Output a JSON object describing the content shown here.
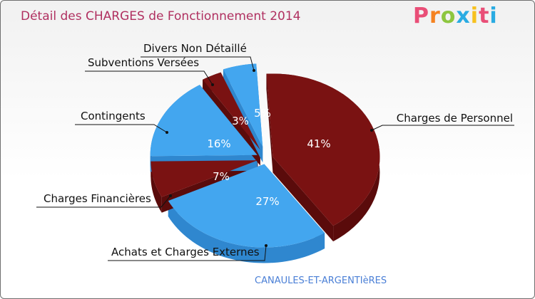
{
  "header": {
    "title": "Détail des CHARGES de Fonctionnement 2014",
    "logo_letters": [
      "P",
      "r",
      "o",
      "x",
      "i",
      "t",
      "i"
    ],
    "logo_colors": [
      "#e94e77",
      "#f58220",
      "#8dc63f",
      "#29abe2",
      "#f7c11e",
      "#e94e77",
      "#29abe2"
    ]
  },
  "footer": {
    "location": "CANAULES-ET-ARGENTIèRES"
  },
  "colors": {
    "dark_red": "#7a1212",
    "dark_red_side": "#5a0b0b",
    "blue": "#43a6ef",
    "blue_side": "#2f87cf"
  },
  "chart_data": {
    "type": "pie",
    "title": "Détail des CHARGES de Fonctionnement 2014",
    "slices": [
      {
        "label": "Charges de Personnel",
        "value": 41,
        "pct_label": "41%",
        "color": "dark_red"
      },
      {
        "label": "Achats et Charges Externes",
        "value": 27,
        "pct_label": "27%",
        "color": "blue"
      },
      {
        "label": "Charges Financières",
        "value": 7,
        "pct_label": "7%",
        "color": "dark_red"
      },
      {
        "label": "Contingents",
        "value": 16,
        "pct_label": "16%",
        "color": "blue"
      },
      {
        "label": "Subventions Versées",
        "value": 3,
        "pct_label": "3%",
        "color": "dark_red"
      },
      {
        "label": "Divers Non Détaillé",
        "value": 5,
        "pct_label": "5%",
        "color": "blue"
      }
    ]
  }
}
